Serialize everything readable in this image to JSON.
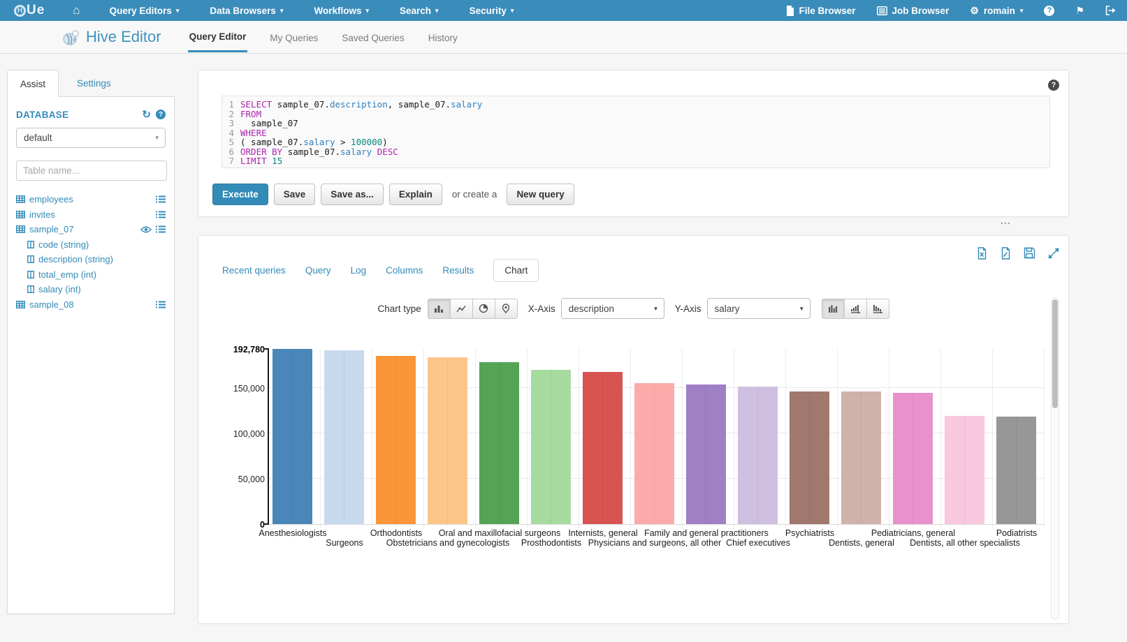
{
  "palette": {
    "accent": "#338bb8",
    "navbar_blue": "#3a8cba",
    "sql_keyword": "#ad25ad",
    "sql_member": "#2f80c0",
    "sql_number": "#0a877f",
    "sql_plain": "#1a1a1a"
  },
  "icons": {
    "caret": "▾",
    "home": "⌂",
    "flag": "⚑",
    "gear": "⚙",
    "refresh": "↻",
    "question_mark": "?"
  },
  "topnav": {
    "menus": [
      {
        "label": "Query Editors"
      },
      {
        "label": "Data Browsers"
      },
      {
        "label": "Workflows"
      },
      {
        "label": "Search"
      },
      {
        "label": "Security"
      }
    ],
    "file_browser": "File Browser",
    "job_browser": "Job Browser",
    "user": "romain"
  },
  "subnav": {
    "app_title": "Hive Editor",
    "tabs": [
      {
        "label": "Query Editor",
        "active": true
      },
      {
        "label": "My Queries",
        "active": false
      },
      {
        "label": "Saved Queries",
        "active": false
      },
      {
        "label": "History",
        "active": false
      }
    ]
  },
  "sidebar": {
    "tabs": [
      {
        "label": "Assist",
        "active": true
      },
      {
        "label": "Settings",
        "active": false
      }
    ],
    "database_label": "DATABASE",
    "database_value": "default",
    "table_filter_placeholder": "Table name...",
    "tables": [
      {
        "name": "employees"
      },
      {
        "name": "invites"
      },
      {
        "name": "sample_07",
        "expanded": true,
        "columns": [
          "code (string)",
          "description (string)",
          "total_emp (int)",
          "salary (int)"
        ]
      },
      {
        "name": "sample_08"
      }
    ]
  },
  "editor": {
    "lines": [
      [
        {
          "c": "kw",
          "t": "SELECT"
        },
        {
          "c": "pl",
          "t": " sample_07."
        },
        {
          "c": "mem",
          "t": "description"
        },
        {
          "c": "pl",
          "t": ", sample_07."
        },
        {
          "c": "mem",
          "t": "salary"
        }
      ],
      [
        {
          "c": "kw",
          "t": "FROM"
        }
      ],
      [
        {
          "c": "pl",
          "t": "  sample_07"
        }
      ],
      [
        {
          "c": "kw",
          "t": "WHERE"
        }
      ],
      [
        {
          "c": "pl",
          "t": "( sample_07."
        },
        {
          "c": "mem",
          "t": "salary"
        },
        {
          "c": "pl",
          "t": " > "
        },
        {
          "c": "num",
          "t": "100000"
        },
        {
          "c": "pl",
          "t": ")"
        }
      ],
      [
        {
          "c": "kw",
          "t": "ORDER BY"
        },
        {
          "c": "pl",
          "t": " sample_07."
        },
        {
          "c": "mem",
          "t": "salary"
        },
        {
          "c": "pl",
          "t": " "
        },
        {
          "c": "kw",
          "t": "DESC"
        }
      ],
      [
        {
          "c": "kw",
          "t": "LIMIT"
        },
        {
          "c": "num",
          "t": " 15"
        }
      ]
    ],
    "buttons": {
      "execute": "Execute",
      "save": "Save",
      "save_as": "Save as...",
      "explain": "Explain",
      "or_create": "or create a",
      "new_query": "New query"
    },
    "resize_handle": "..."
  },
  "results": {
    "tabs": [
      {
        "label": "Recent queries",
        "active": false
      },
      {
        "label": "Query",
        "active": false
      },
      {
        "label": "Log",
        "active": false
      },
      {
        "label": "Columns",
        "active": false
      },
      {
        "label": "Results",
        "active": false
      },
      {
        "label": "Chart",
        "active": true
      }
    ]
  },
  "chart_controls": {
    "chart_type_label": "Chart type",
    "x_axis_label": "X-Axis",
    "x_axis_value": "description",
    "y_axis_label": "Y-Axis",
    "y_axis_value": "salary"
  },
  "chart_data": {
    "type": "bar",
    "title": "",
    "xlabel": "description",
    "ylabel": "salary",
    "ylim": [
      0,
      192780
    ],
    "grid": true,
    "legend_position": "none",
    "yticks": [
      {
        "value": 192780,
        "label": "192,780",
        "bold": true,
        "grid": false
      },
      {
        "value": 150000,
        "label": "150,000",
        "bold": false,
        "grid": true
      },
      {
        "value": 100000,
        "label": "100,000",
        "bold": false,
        "grid": true
      },
      {
        "value": 50000,
        "label": "50,000",
        "bold": false,
        "grid": true
      },
      {
        "value": 0,
        "label": "0",
        "bold": true,
        "grid": false
      }
    ],
    "categories": [
      "Anesthesiologists",
      "Surgeons",
      "Orthodontists",
      "Obstetricians and gynecologists",
      "Oral and maxillofacial surgeons",
      "Prosthodontists",
      "Internists, general",
      "Physicians and surgeons, all other",
      "Family and general practitioners",
      "Chief executives",
      "Psychiatrists",
      "Dentists, general",
      "Pediatricians, general",
      "Dentists, all other specialists",
      "Podiatrists"
    ],
    "values": [
      192780,
      191410,
      185340,
      183610,
      178440,
      169810,
      167270,
      155150,
      153640,
      151370,
      146150,
      145600,
      144210,
      118820,
      118500
    ],
    "colors": [
      "#4a87b8",
      "#c7d9ed",
      "#fa9538",
      "#fcc689",
      "#56a356",
      "#a7dba0",
      "#d75451",
      "#fdabaa",
      "#a07fc5",
      "#cfc0e2",
      "#a1786d",
      "#cfb2aa",
      "#e991cd",
      "#f8c8de",
      "#979797"
    ]
  }
}
